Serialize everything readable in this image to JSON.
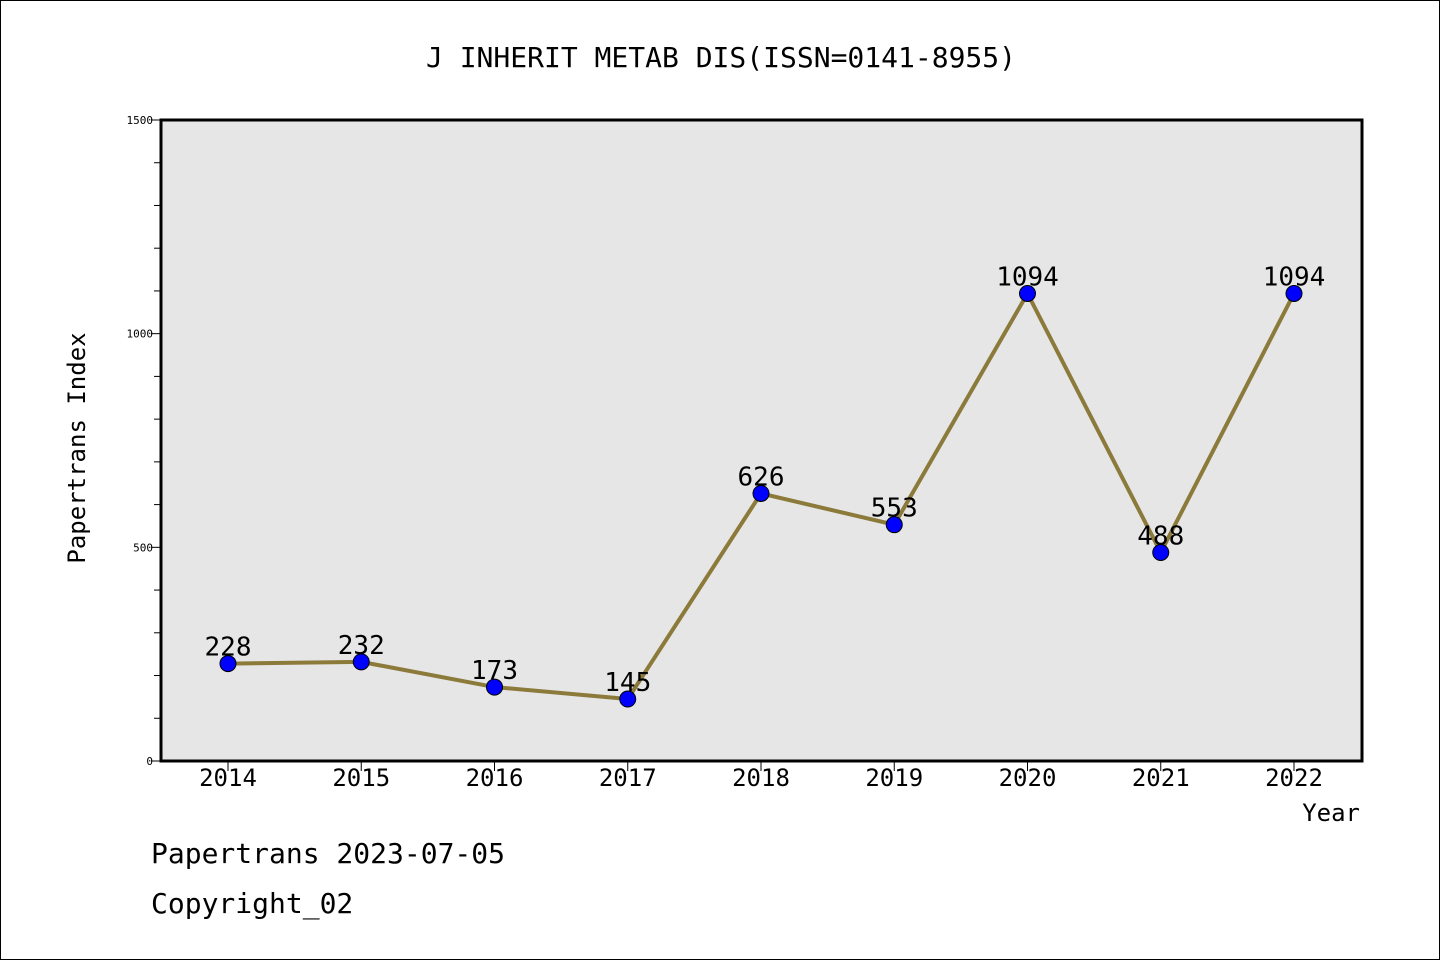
{
  "footer": {
    "line1": "Papertrans 2023-07-05",
    "line2": "Copyright_02"
  },
  "colors": {
    "plot_background": "#e6e6e6",
    "line": "#8b7a3a",
    "marker": "#0000ff"
  },
  "chart_data": {
    "type": "line",
    "title": "J INHERIT METAB DIS(ISSN=0141-8955)",
    "xlabel": "Year",
    "ylabel": "Papertrans Index",
    "categories": [
      "2014",
      "2015",
      "2016",
      "2017",
      "2018",
      "2019",
      "2020",
      "2021",
      "2022"
    ],
    "series": [
      {
        "values": [
          228,
          232,
          173,
          145,
          626,
          553,
          1094,
          488,
          1094
        ]
      }
    ],
    "ylim": [
      0,
      1500
    ],
    "yticks": [
      0,
      500,
      1000,
      1500
    ],
    "grid": false,
    "legend": "none"
  }
}
